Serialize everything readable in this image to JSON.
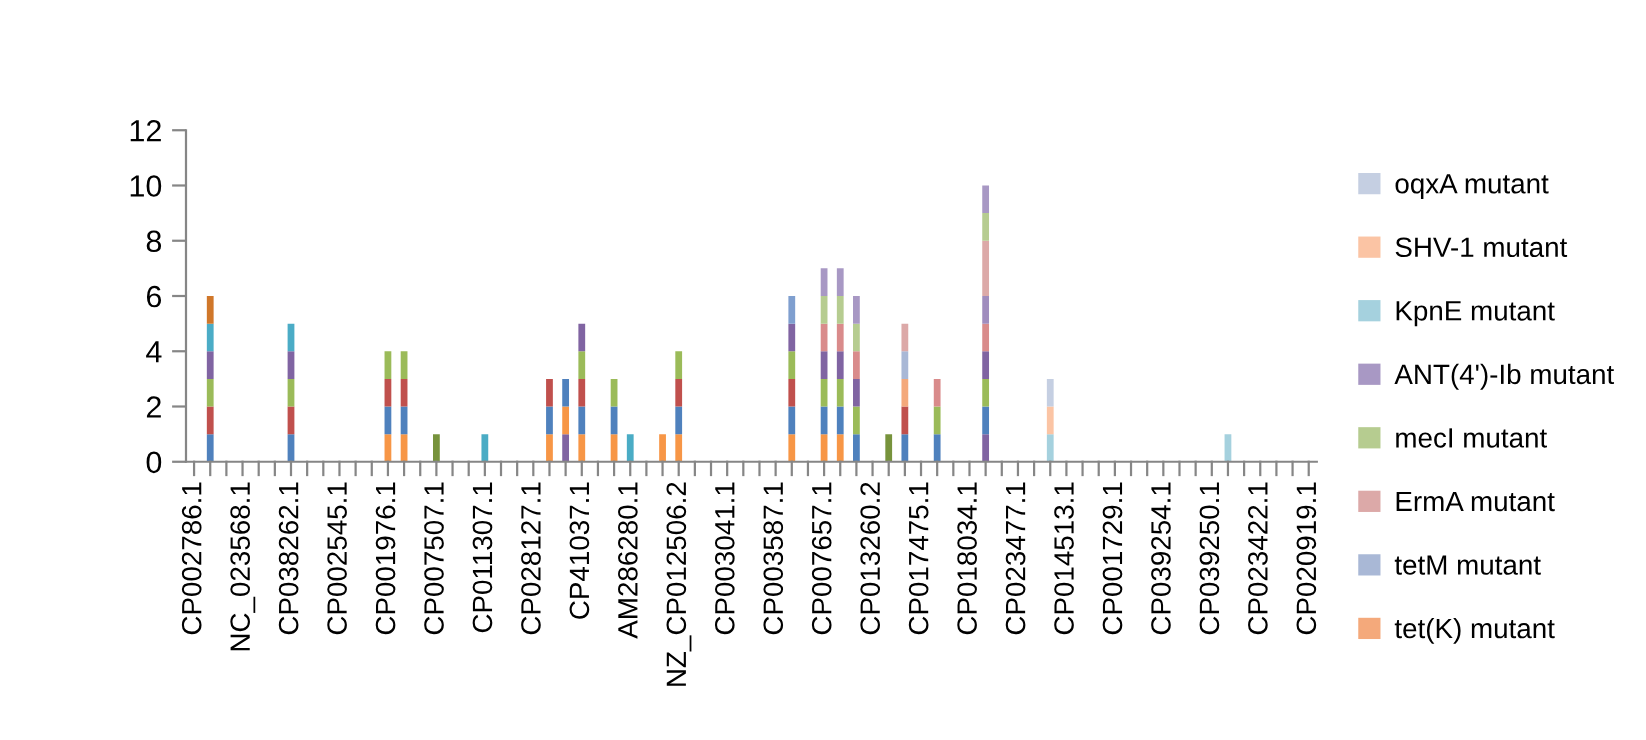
{
  "chart_data": {
    "type": "bar",
    "stacked": true,
    "categories": [
      "CP002786.1",
      null,
      null,
      "NC_023568.1",
      null,
      null,
      "CP038262.1",
      null,
      null,
      "CP002545.1",
      null,
      null,
      "CP001976.1",
      null,
      null,
      "CP007507.1",
      null,
      null,
      "CP011307.1",
      null,
      null,
      "CP028127.1",
      null,
      null,
      "CP41037.1",
      null,
      null,
      "AM286280.1",
      null,
      null,
      "NZ_CP012506.2",
      null,
      null,
      "CP003041.1",
      null,
      null,
      "CP003587.1",
      null,
      null,
      "CP007657.1",
      null,
      null,
      "CP013260.2",
      null,
      null,
      "CP017475.1",
      null,
      null,
      "CP018034.1",
      null,
      null,
      "CP023477.1",
      null,
      null,
      "CP014513.1",
      null,
      null,
      "CP001729.1",
      null,
      null,
      "CP039254.1",
      null,
      null,
      "CP039250.1",
      null,
      null,
      "CP023422.1",
      null,
      null,
      "CP020919.1"
    ],
    "ylim": [
      0,
      12
    ],
    "yticks": [
      0,
      2,
      4,
      6,
      8,
      10,
      12
    ],
    "legend": "right",
    "series": [
      {
        "color": "#8064a2",
        "values": [
          0,
          0,
          0,
          0,
          0,
          0,
          0,
          0,
          0,
          0,
          0,
          0,
          0,
          0,
          0,
          0,
          0,
          0,
          0,
          0,
          0,
          0,
          0,
          1,
          0,
          0,
          0,
          0,
          0,
          0,
          0,
          0,
          0,
          0,
          0,
          0,
          0,
          0,
          0,
          0,
          0,
          0,
          0,
          0,
          0,
          0,
          0,
          0,
          0,
          1,
          0,
          0,
          0,
          0,
          0,
          0,
          0,
          0,
          0,
          0,
          0,
          0,
          0,
          0,
          0,
          0,
          0,
          0,
          0,
          0
        ]
      },
      {
        "color": "#f79646",
        "values": [
          0,
          0,
          0,
          0,
          0,
          0,
          0,
          0,
          0,
          0,
          0,
          0,
          1,
          1,
          0,
          0,
          0,
          0,
          0,
          0,
          0,
          0,
          1,
          1,
          1,
          0,
          1,
          0,
          0,
          1,
          1,
          0,
          0,
          0,
          0,
          0,
          0,
          1,
          0,
          1,
          1,
          0,
          0,
          0,
          0,
          0,
          0,
          0,
          0,
          0,
          0,
          0,
          0,
          0,
          0,
          0,
          0,
          0,
          0,
          0,
          0,
          0,
          0,
          0,
          0,
          0,
          0,
          0,
          0,
          0
        ]
      },
      {
        "color": "#4f81bd",
        "values": [
          0,
          1,
          0,
          0,
          0,
          0,
          1,
          0,
          0,
          0,
          0,
          0,
          1,
          1,
          0,
          0,
          0,
          0,
          0,
          0,
          0,
          0,
          1,
          1,
          1,
          0,
          1,
          0,
          0,
          0,
          1,
          0,
          0,
          0,
          0,
          0,
          0,
          1,
          0,
          1,
          1,
          1,
          0,
          0,
          1,
          0,
          1,
          0,
          0,
          1,
          0,
          0,
          0,
          0,
          0,
          0,
          0,
          0,
          0,
          0,
          0,
          0,
          0,
          0,
          0,
          0,
          0,
          0,
          0,
          0
        ]
      },
      {
        "color": "#c0504d",
        "values": [
          0,
          1,
          0,
          0,
          0,
          0,
          1,
          0,
          0,
          0,
          0,
          0,
          1,
          1,
          0,
          0,
          0,
          0,
          0,
          0,
          0,
          0,
          1,
          0,
          1,
          0,
          0,
          0,
          0,
          0,
          1,
          0,
          0,
          0,
          0,
          0,
          0,
          1,
          0,
          0,
          0,
          0,
          0,
          0,
          1,
          0,
          0,
          0,
          0,
          0,
          0,
          0,
          0,
          0,
          0,
          0,
          0,
          0,
          0,
          0,
          0,
          0,
          0,
          0,
          0,
          0,
          0,
          0,
          0,
          0
        ]
      },
      {
        "color": "#9bbb59",
        "values": [
          0,
          1,
          0,
          0,
          0,
          0,
          1,
          0,
          0,
          0,
          0,
          0,
          1,
          1,
          0,
          0,
          0,
          0,
          0,
          0,
          0,
          0,
          0,
          0,
          1,
          0,
          1,
          0,
          0,
          0,
          1,
          0,
          0,
          0,
          0,
          0,
          0,
          1,
          0,
          1,
          1,
          1,
          0,
          0,
          0,
          0,
          1,
          0,
          0,
          1,
          0,
          0,
          0,
          0,
          0,
          0,
          0,
          0,
          0,
          0,
          0,
          0,
          0,
          0,
          0,
          0,
          0,
          0,
          0,
          0
        ]
      },
      {
        "color": "#8064a2",
        "values": [
          0,
          1,
          0,
          0,
          0,
          0,
          1,
          0,
          0,
          0,
          0,
          0,
          0,
          0,
          0,
          0,
          0,
          0,
          0,
          0,
          0,
          0,
          0,
          0,
          1,
          0,
          0,
          0,
          0,
          0,
          0,
          0,
          0,
          0,
          0,
          0,
          0,
          1,
          0,
          1,
          1,
          1,
          0,
          0,
          0,
          0,
          0,
          0,
          0,
          1,
          0,
          0,
          0,
          0,
          0,
          0,
          0,
          0,
          0,
          0,
          0,
          0,
          0,
          0,
          0,
          0,
          0,
          0,
          0,
          0
        ]
      },
      {
        "color": "#4bacc6",
        "values": [
          0,
          1,
          0,
          0,
          0,
          0,
          1,
          0,
          0,
          0,
          0,
          0,
          0,
          0,
          0,
          0,
          0,
          0,
          0,
          0,
          0,
          0,
          0,
          0,
          0,
          0,
          0,
          0,
          0,
          0,
          0,
          0,
          0,
          0,
          0,
          0,
          0,
          0,
          0,
          0,
          0,
          0,
          0,
          0,
          0,
          0,
          0,
          0,
          0,
          0,
          0,
          0,
          0,
          0,
          0,
          0,
          0,
          0,
          0,
          0,
          0,
          0,
          0,
          0,
          0,
          0,
          0,
          0,
          0,
          0
        ]
      },
      {
        "color": "#d0772a",
        "values": [
          0,
          1,
          0,
          0,
          0,
          0,
          0,
          0,
          0,
          0,
          0,
          0,
          0,
          0,
          0,
          0,
          0,
          0,
          0,
          0,
          0,
          0,
          0,
          0,
          0,
          0,
          0,
          0,
          0,
          0,
          0,
          0,
          0,
          0,
          0,
          0,
          0,
          0,
          0,
          0,
          0,
          0,
          0,
          0,
          0,
          0,
          0,
          0,
          0,
          0,
          0,
          0,
          0,
          0,
          0,
          0,
          0,
          0,
          0,
          0,
          0,
          0,
          0,
          0,
          0,
          0,
          0,
          0,
          0,
          0
        ]
      },
      {
        "color": "#77933c",
        "values": [
          0,
          0,
          0,
          0,
          0,
          0,
          0,
          0,
          0,
          0,
          0,
          0,
          0,
          0,
          0,
          1,
          0,
          0,
          0,
          0,
          0,
          0,
          0,
          0,
          0,
          0,
          0,
          0,
          0,
          0,
          0,
          0,
          0,
          0,
          0,
          0,
          0,
          0,
          0,
          0,
          0,
          0,
          0,
          1,
          0,
          0,
          0,
          0,
          0,
          0,
          0,
          0,
          0,
          0,
          0,
          0,
          0,
          0,
          0,
          0,
          0,
          0,
          0,
          0,
          0,
          0,
          0,
          0,
          0,
          0
        ]
      },
      {
        "color": "#4aacc5",
        "values": [
          0,
          0,
          0,
          0,
          0,
          0,
          0,
          0,
          0,
          0,
          0,
          0,
          0,
          0,
          0,
          0,
          0,
          0,
          1,
          0,
          0,
          0,
          0,
          0,
          0,
          0,
          0,
          1,
          0,
          0,
          0,
          0,
          0,
          0,
          0,
          0,
          0,
          0,
          0,
          0,
          0,
          0,
          0,
          0,
          0,
          0,
          0,
          0,
          0,
          0,
          0,
          0,
          0,
          0,
          0,
          0,
          0,
          0,
          0,
          0,
          0,
          0,
          0,
          0,
          0,
          0,
          0,
          0,
          0,
          0
        ]
      },
      {
        "color": "#7f9fcf",
        "values": [
          0,
          0,
          0,
          0,
          0,
          0,
          0,
          0,
          0,
          0,
          0,
          0,
          0,
          0,
          0,
          0,
          0,
          0,
          0,
          0,
          0,
          0,
          0,
          0,
          0,
          0,
          0,
          0,
          0,
          0,
          0,
          0,
          0,
          0,
          0,
          0,
          0,
          1,
          0,
          0,
          0,
          0,
          0,
          0,
          0,
          0,
          0,
          0,
          0,
          0,
          0,
          0,
          0,
          0,
          0,
          0,
          0,
          0,
          0,
          0,
          0,
          0,
          0,
          0,
          0,
          0,
          0,
          0,
          0,
          0
        ]
      },
      {
        "color": "#d98b8b",
        "values": [
          0,
          0,
          0,
          0,
          0,
          0,
          0,
          0,
          0,
          0,
          0,
          0,
          0,
          0,
          0,
          0,
          0,
          0,
          0,
          0,
          0,
          0,
          0,
          0,
          0,
          0,
          0,
          0,
          0,
          0,
          0,
          0,
          0,
          0,
          0,
          0,
          0,
          0,
          0,
          1,
          1,
          1,
          0,
          0,
          0,
          0,
          1,
          0,
          0,
          1,
          0,
          0,
          0,
          0,
          0,
          0,
          0,
          0,
          0,
          0,
          0,
          0,
          0,
          0,
          0,
          0,
          0,
          0,
          0,
          0
        ]
      },
      {
        "color": "#a08cbe",
        "values": [
          0,
          0,
          0,
          0,
          0,
          0,
          0,
          0,
          0,
          0,
          0,
          0,
          0,
          0,
          0,
          0,
          0,
          0,
          0,
          0,
          0,
          0,
          0,
          0,
          0,
          0,
          0,
          0,
          0,
          0,
          0,
          0,
          0,
          0,
          0,
          0,
          0,
          0,
          0,
          0,
          0,
          0,
          0,
          0,
          0,
          0,
          0,
          0,
          0,
          1,
          0,
          0,
          0,
          0,
          0,
          0,
          0,
          0,
          0,
          0,
          0,
          0,
          0,
          0,
          0,
          0,
          0,
          0,
          0,
          0
        ]
      },
      {
        "name": "tet(K) mutant",
        "color": "#f4a97b",
        "values": [
          0,
          0,
          0,
          0,
          0,
          0,
          0,
          0,
          0,
          0,
          0,
          0,
          0,
          0,
          0,
          0,
          0,
          0,
          0,
          0,
          0,
          0,
          0,
          0,
          0,
          0,
          0,
          0,
          0,
          0,
          0,
          0,
          0,
          0,
          0,
          0,
          0,
          0,
          0,
          0,
          0,
          0,
          0,
          0,
          1,
          0,
          0,
          0,
          0,
          0,
          0,
          0,
          0,
          0,
          0,
          0,
          0,
          0,
          0,
          0,
          0,
          0,
          0,
          0,
          0,
          0,
          0,
          0,
          0,
          0
        ]
      },
      {
        "name": "tetM mutant",
        "color": "#a9b8d6",
        "values": [
          0,
          0,
          0,
          0,
          0,
          0,
          0,
          0,
          0,
          0,
          0,
          0,
          0,
          0,
          0,
          0,
          0,
          0,
          0,
          0,
          0,
          0,
          0,
          0,
          0,
          0,
          0,
          0,
          0,
          0,
          0,
          0,
          0,
          0,
          0,
          0,
          0,
          0,
          0,
          0,
          0,
          0,
          0,
          0,
          1,
          0,
          0,
          0,
          0,
          0,
          0,
          0,
          0,
          0,
          0,
          0,
          0,
          0,
          0,
          0,
          0,
          0,
          0,
          0,
          0,
          0,
          0,
          0,
          0,
          0
        ]
      },
      {
        "name": "ErmA mutant",
        "color": "#dca9a8",
        "values": [
          0,
          0,
          0,
          0,
          0,
          0,
          0,
          0,
          0,
          0,
          0,
          0,
          0,
          0,
          0,
          0,
          0,
          0,
          0,
          0,
          0,
          0,
          0,
          0,
          0,
          0,
          0,
          0,
          0,
          0,
          0,
          0,
          0,
          0,
          0,
          0,
          0,
          0,
          0,
          0,
          0,
          0,
          0,
          0,
          1,
          0,
          0,
          0,
          0,
          2,
          0,
          0,
          0,
          0,
          0,
          0,
          0,
          0,
          0,
          0,
          0,
          0,
          0,
          0,
          0,
          0,
          0,
          0,
          0,
          0
        ]
      },
      {
        "name": "mecI mutant",
        "color": "#b6cc90",
        "values": [
          0,
          0,
          0,
          0,
          0,
          0,
          0,
          0,
          0,
          0,
          0,
          0,
          0,
          0,
          0,
          0,
          0,
          0,
          0,
          0,
          0,
          0,
          0,
          0,
          0,
          0,
          0,
          0,
          0,
          0,
          0,
          0,
          0,
          0,
          0,
          0,
          0,
          0,
          0,
          1,
          1,
          1,
          0,
          0,
          0,
          0,
          0,
          0,
          0,
          1,
          0,
          0,
          0,
          0,
          0,
          0,
          0,
          0,
          0,
          0,
          0,
          0,
          0,
          0,
          0,
          0,
          0,
          0,
          0,
          0
        ]
      },
      {
        "name": "ANT(4')-Ib mutant",
        "color": "#a898c4",
        "values": [
          0,
          0,
          0,
          0,
          0,
          0,
          0,
          0,
          0,
          0,
          0,
          0,
          0,
          0,
          0,
          0,
          0,
          0,
          0,
          0,
          0,
          0,
          0,
          0,
          0,
          0,
          0,
          0,
          0,
          0,
          0,
          0,
          0,
          0,
          0,
          0,
          0,
          0,
          0,
          1,
          1,
          1,
          0,
          0,
          0,
          0,
          0,
          0,
          0,
          1,
          0,
          0,
          0,
          0,
          0,
          0,
          0,
          0,
          0,
          0,
          0,
          0,
          0,
          0,
          0,
          0,
          0,
          0,
          0,
          0
        ]
      },
      {
        "name": "KpnE mutant",
        "color": "#a5d1de",
        "values": [
          0,
          0,
          0,
          0,
          0,
          0,
          0,
          0,
          0,
          0,
          0,
          0,
          0,
          0,
          0,
          0,
          0,
          0,
          0,
          0,
          0,
          0,
          0,
          0,
          0,
          0,
          0,
          0,
          0,
          0,
          0,
          0,
          0,
          0,
          0,
          0,
          0,
          0,
          0,
          0,
          0,
          0,
          0,
          0,
          0,
          0,
          0,
          0,
          0,
          0,
          0,
          0,
          0,
          1,
          0,
          0,
          0,
          0,
          0,
          0,
          0,
          0,
          0,
          0,
          1,
          0,
          0,
          0,
          0,
          0
        ]
      },
      {
        "name": "SHV-1 mutant",
        "color": "#fbc4a4",
        "values": [
          0,
          0,
          0,
          0,
          0,
          0,
          0,
          0,
          0,
          0,
          0,
          0,
          0,
          0,
          0,
          0,
          0,
          0,
          0,
          0,
          0,
          0,
          0,
          0,
          0,
          0,
          0,
          0,
          0,
          0,
          0,
          0,
          0,
          0,
          0,
          0,
          0,
          0,
          0,
          0,
          0,
          0,
          0,
          0,
          0,
          0,
          0,
          0,
          0,
          0,
          0,
          0,
          0,
          1,
          0,
          0,
          0,
          0,
          0,
          0,
          0,
          0,
          0,
          0,
          0,
          0,
          0,
          0,
          0,
          0
        ]
      },
      {
        "name": "oqxA mutant",
        "color": "#c5cfe2",
        "values": [
          0,
          0,
          0,
          0,
          0,
          0,
          0,
          0,
          0,
          0,
          0,
          0,
          0,
          0,
          0,
          0,
          0,
          0,
          0,
          0,
          0,
          0,
          0,
          0,
          0,
          0,
          0,
          0,
          0,
          0,
          0,
          0,
          0,
          0,
          0,
          0,
          0,
          0,
          0,
          0,
          0,
          0,
          0,
          0,
          0,
          0,
          0,
          0,
          0,
          0,
          0,
          0,
          0,
          1,
          0,
          0,
          0,
          0,
          0,
          0,
          0,
          0,
          0,
          0,
          0,
          0,
          0,
          0,
          0,
          0
        ]
      }
    ]
  }
}
